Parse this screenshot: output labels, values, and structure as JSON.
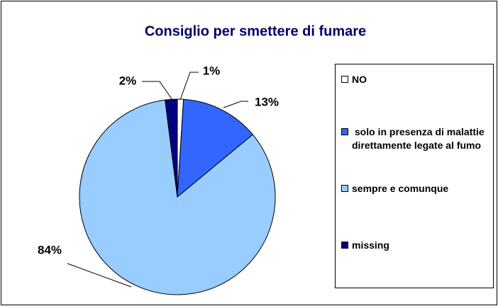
{
  "chart_data": {
    "type": "pie",
    "title": "Consiglio per smettere di fumare",
    "categories": [
      "NO",
      " solo in presenza di malattie direttamente legate al fumo",
      "sempre e comunque",
      "missing"
    ],
    "values": [
      1,
      13,
      84,
      2
    ],
    "value_labels": [
      "1%",
      "13%",
      "84%",
      "2%"
    ],
    "colors": [
      "#ffffff",
      "#3366ff",
      "#99ccff",
      "#000080"
    ]
  }
}
